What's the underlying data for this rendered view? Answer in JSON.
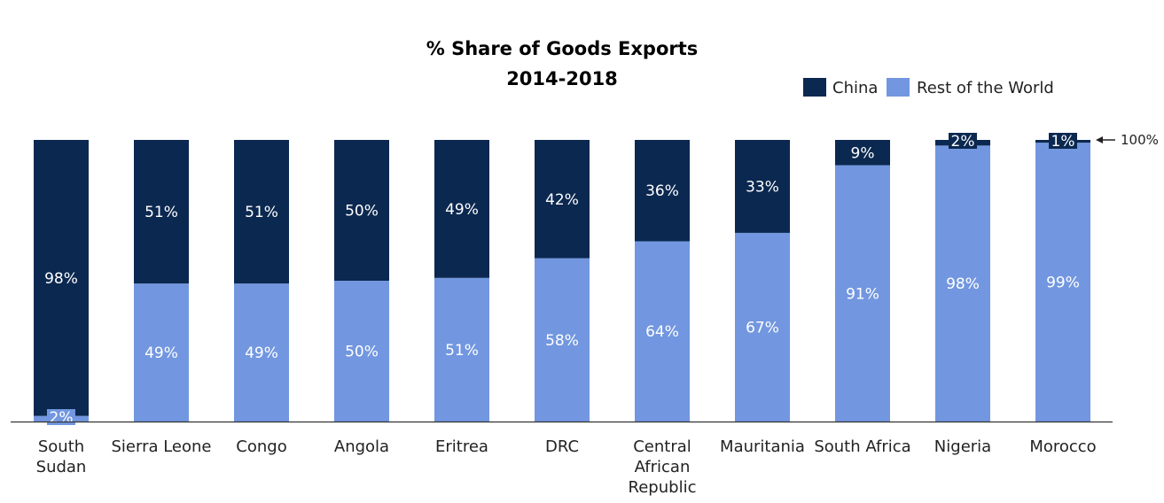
{
  "chart_data": {
    "type": "bar",
    "stacked": true,
    "title": [
      "% Share of Goods Exports",
      "2014-2018"
    ],
    "categories": [
      [
        "South",
        "Sudan"
      ],
      [
        "Sierra Leone"
      ],
      [
        "Congo"
      ],
      [
        "Angola"
      ],
      [
        "Eritrea"
      ],
      [
        "DRC"
      ],
      [
        "Central",
        "African",
        "Republic"
      ],
      [
        "Mauritania"
      ],
      [
        "South Africa"
      ],
      [
        "Nigeria"
      ],
      [
        "Morocco"
      ]
    ],
    "series": [
      {
        "name": "Rest of the World",
        "color": "#7297e0",
        "values": [
          2,
          49,
          49,
          50,
          51,
          58,
          64,
          67,
          91,
          98,
          99
        ],
        "labels": [
          "2%",
          "49%",
          "49%",
          "50%",
          "51%",
          "58%",
          "64%",
          "67%",
          "91%",
          "98%",
          "99%"
        ]
      },
      {
        "name": "China",
        "color": "#0b2850",
        "values": [
          98,
          51,
          51,
          50,
          49,
          42,
          36,
          33,
          9,
          2,
          1
        ],
        "labels": [
          "98%",
          "51%",
          "51%",
          "50%",
          "49%",
          "42%",
          "36%",
          "33%",
          "9%",
          "2%",
          "1%"
        ]
      }
    ],
    "legend": {
      "position": "top-right",
      "order": [
        "China",
        "Rest of the World"
      ]
    },
    "annotation": {
      "text": "100%",
      "arrow": "left"
    },
    "ylim": [
      0,
      100
    ],
    "grid": false
  }
}
